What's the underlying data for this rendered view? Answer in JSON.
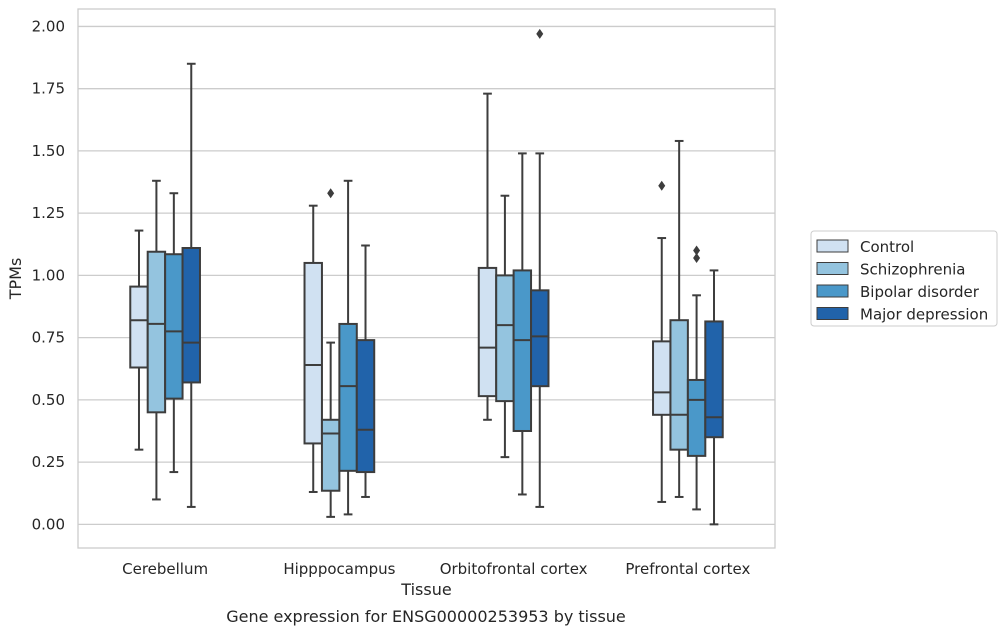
{
  "caption": "Gene expression for ENSG00000253953 by tissue",
  "chart_data": {
    "type": "box",
    "xlabel": "Tissue",
    "ylabel": "TPMs",
    "ylim": [
      -0.095,
      2.07
    ],
    "yticks": [
      0.0,
      0.25,
      0.5,
      0.75,
      1.0,
      1.25,
      1.5,
      1.75,
      2.0
    ],
    "ytick_labels": [
      "0.00",
      "0.25",
      "0.50",
      "0.75",
      "1.00",
      "1.25",
      "1.50",
      "1.75",
      "2.00"
    ],
    "grid": true,
    "legend_position": "right",
    "categories": [
      "Cerebellum",
      "Hipppocampus",
      "Orbitofrontal cortex",
      "Prefrontal cortex"
    ],
    "series": [
      {
        "name": "Control",
        "color": "#d0e1f2",
        "boxes": [
          {
            "whislo": 0.3,
            "q1": 0.63,
            "med": 0.82,
            "q3": 0.955,
            "whishi": 1.18,
            "fliers": []
          },
          {
            "whislo": 0.13,
            "q1": 0.325,
            "med": 0.64,
            "q3": 1.05,
            "whishi": 1.28,
            "fliers": []
          },
          {
            "whislo": 0.42,
            "q1": 0.515,
            "med": 0.71,
            "q3": 1.03,
            "whishi": 1.73,
            "fliers": []
          },
          {
            "whislo": 0.09,
            "q1": 0.44,
            "med": 0.53,
            "q3": 0.735,
            "whishi": 1.15,
            "fliers": [
              1.36
            ]
          }
        ]
      },
      {
        "name": "Schizophrenia",
        "color": "#94c4df",
        "boxes": [
          {
            "whislo": 0.1,
            "q1": 0.45,
            "med": 0.805,
            "q3": 1.095,
            "whishi": 1.38,
            "fliers": []
          },
          {
            "whislo": 0.03,
            "q1": 0.135,
            "med": 0.365,
            "q3": 0.42,
            "whishi": 0.73,
            "fliers": [
              1.33
            ]
          },
          {
            "whislo": 0.27,
            "q1": 0.495,
            "med": 0.8,
            "q3": 1.0,
            "whishi": 1.32,
            "fliers": []
          },
          {
            "whislo": 0.11,
            "q1": 0.3,
            "med": 0.44,
            "q3": 0.82,
            "whishi": 1.54,
            "fliers": []
          }
        ]
      },
      {
        "name": "Bipolar disorder",
        "color": "#4a98c9",
        "boxes": [
          {
            "whislo": 0.21,
            "q1": 0.505,
            "med": 0.775,
            "q3": 1.085,
            "whishi": 1.33,
            "fliers": []
          },
          {
            "whislo": 0.04,
            "q1": 0.215,
            "med": 0.555,
            "q3": 0.805,
            "whishi": 1.38,
            "fliers": []
          },
          {
            "whislo": 0.12,
            "q1": 0.375,
            "med": 0.74,
            "q3": 1.02,
            "whishi": 1.49,
            "fliers": []
          },
          {
            "whislo": 0.06,
            "q1": 0.275,
            "med": 0.5,
            "q3": 0.58,
            "whishi": 0.92,
            "fliers": [
              1.07,
              1.1
            ]
          }
        ]
      },
      {
        "name": "Major depression",
        "color": "#2163aa",
        "boxes": [
          {
            "whislo": 0.07,
            "q1": 0.57,
            "med": 0.73,
            "q3": 1.11,
            "whishi": 1.85,
            "fliers": []
          },
          {
            "whislo": 0.11,
            "q1": 0.21,
            "med": 0.38,
            "q3": 0.74,
            "whishi": 1.12,
            "fliers": []
          },
          {
            "whislo": 0.07,
            "q1": 0.555,
            "med": 0.755,
            "q3": 0.94,
            "whishi": 1.49,
            "fliers": [
              1.97
            ]
          },
          {
            "whislo": 0.0,
            "q1": 0.35,
            "med": 0.43,
            "q3": 0.815,
            "whishi": 1.02,
            "fliers": []
          }
        ]
      }
    ]
  }
}
